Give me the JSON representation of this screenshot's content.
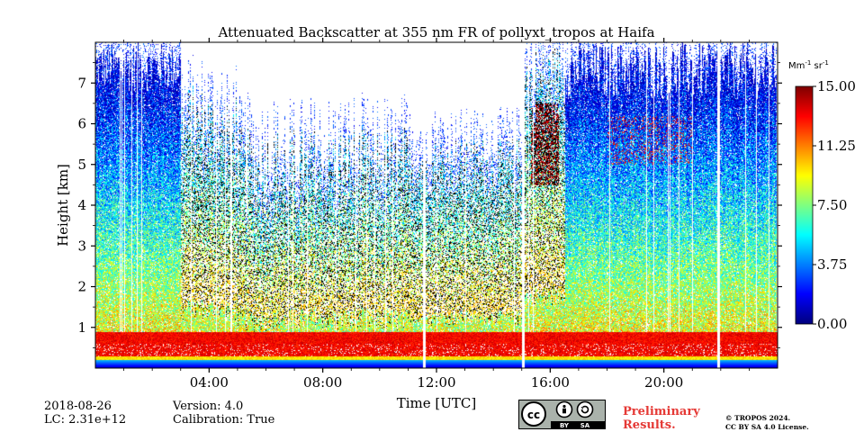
{
  "chart_data": {
    "type": "heatmap",
    "title": "Attenuated Backscatter at 355 nm FR of pollyxt_tropos at Haifa",
    "xlabel": "Time [UTC]",
    "ylabel": "Height [km]",
    "xlim_hours": [
      0,
      24
    ],
    "ylim_km": [
      0,
      8
    ],
    "x_ticks": [
      {
        "hour": 4,
        "label": "04:00"
      },
      {
        "hour": 8,
        "label": "08:00"
      },
      {
        "hour": 12,
        "label": "12:00"
      },
      {
        "hour": 16,
        "label": "16:00"
      },
      {
        "hour": 20,
        "label": "20:00"
      }
    ],
    "y_ticks": [
      {
        "km": 1,
        "label": "1"
      },
      {
        "km": 2,
        "label": "2"
      },
      {
        "km": 3,
        "label": "3"
      },
      {
        "km": 4,
        "label": "4"
      },
      {
        "km": 5,
        "label": "5"
      },
      {
        "km": 6,
        "label": "6"
      },
      {
        "km": 7,
        "label": "7"
      }
    ],
    "colorbar": {
      "unit_main": "Mm",
      "unit_exp1": "-1",
      "unit_mid": " sr",
      "unit_exp2": "-1",
      "min": 0.0,
      "max": 15.0,
      "ticks": [
        {
          "value": 0.0,
          "label": "0.00"
        },
        {
          "value": 3.75,
          "label": "3.75"
        },
        {
          "value": 7.5,
          "label": "7.50"
        },
        {
          "value": 11.25,
          "label": "11.25"
        },
        {
          "value": 15.0,
          "label": "15.00"
        }
      ],
      "colormap": "jet"
    },
    "data_gaps_hours": [
      11.55,
      15.05,
      21.9
    ],
    "colors": {
      "low": "#0b3bd6",
      "mid": "#4fd23a",
      "high": "#e53b0f",
      "black_cloud": "#000000"
    }
  },
  "footer": {
    "date": "2018-08-26",
    "lc": "LC: 2.31e+12",
    "version": "Version: 4.0",
    "calibration": "Calibration: True",
    "prelim_line1": "Preliminary",
    "prelim_line2": "Results.",
    "copyright_line1": "© TROPOS 2024.",
    "copyright_line2": "CC BY SA 4.0 License.",
    "license_badge": {
      "cc": "cc",
      "by": "BY",
      "sa": "SA"
    }
  }
}
